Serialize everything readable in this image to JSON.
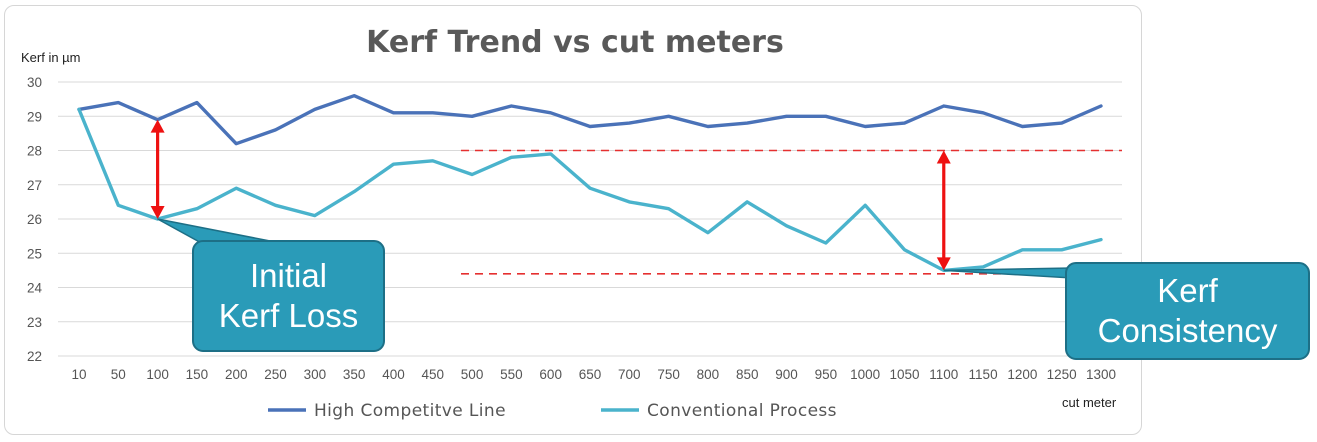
{
  "chart_data": {
    "type": "line",
    "title": "Kerf Trend vs cut meters",
    "ylabel": "Kerf in µm",
    "xlabel": "cut meter",
    "ylim": [
      22,
      30
    ],
    "yticks": [
      22,
      23,
      24,
      25,
      26,
      27,
      28,
      29,
      30
    ],
    "categories": [
      "10",
      "50",
      "100",
      "150",
      "200",
      "250",
      "300",
      "350",
      "400",
      "450",
      "500",
      "550",
      "600",
      "650",
      "700",
      "750",
      "800",
      "850",
      "900",
      "950",
      "1000",
      "1050",
      "1100",
      "1150",
      "1200",
      "1250",
      "1300"
    ],
    "series": [
      {
        "name": "High Competitve Line",
        "color": "#4a72b8",
        "values": [
          29.2,
          29.4,
          28.9,
          29.4,
          28.2,
          28.6,
          29.2,
          29.6,
          29.1,
          29.1,
          29.0,
          29.3,
          29.1,
          28.7,
          28.8,
          29.0,
          28.7,
          28.8,
          29.0,
          29.0,
          28.7,
          28.8,
          29.3,
          29.1,
          28.7,
          28.8,
          29.3
        ]
      },
      {
        "name": "Conventional Process",
        "color": "#4ab3cc",
        "values": [
          29.2,
          26.4,
          26.0,
          26.3,
          26.9,
          26.4,
          26.1,
          26.8,
          27.6,
          27.7,
          27.3,
          27.8,
          27.9,
          26.9,
          26.5,
          26.3,
          25.6,
          26.5,
          25.8,
          25.3,
          26.4,
          25.1,
          24.5,
          24.6,
          25.1,
          25.1,
          25.4
        ]
      }
    ],
    "legend_position": "bottom",
    "grid": true,
    "annotations": {
      "reference_lines": [
        {
          "y": 28.0,
          "color": "#e53030"
        },
        {
          "y": 24.4,
          "color": "#e53030"
        }
      ],
      "arrows": [
        {
          "x": "100",
          "y_from": 26.0,
          "y_to": 28.9,
          "color": "#ee1111"
        },
        {
          "x": "1100",
          "y_from": 24.5,
          "y_to": 28.0,
          "color": "#ee1111"
        }
      ],
      "callouts": [
        {
          "lines": [
            "Initial",
            "Kerf Loss"
          ],
          "points_to_x": "100",
          "points_to_y": 26.0
        },
        {
          "lines": [
            "Kerf",
            "Consistency"
          ],
          "points_to_x": "1100",
          "points_to_y": 24.5
        }
      ],
      "callout_color": "#2a9bb8"
    }
  }
}
